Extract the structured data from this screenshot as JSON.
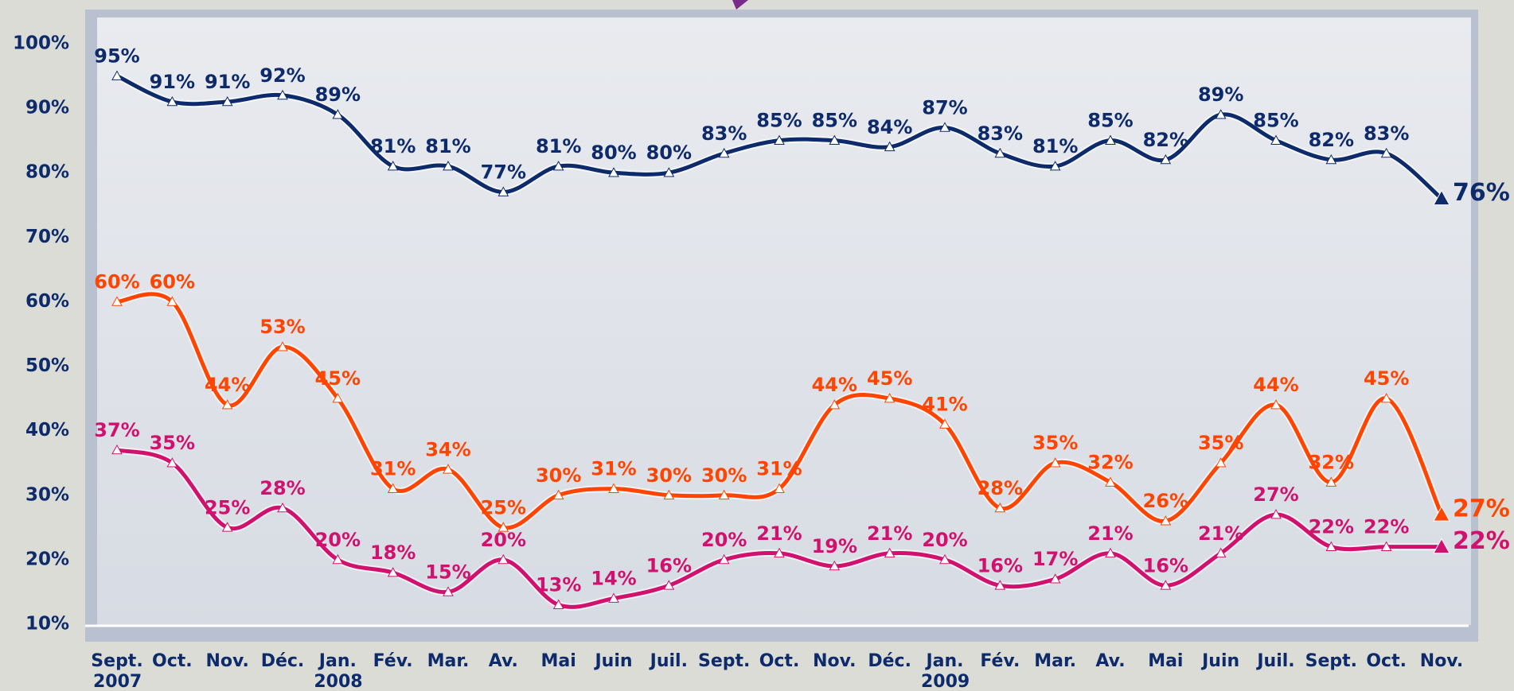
{
  "chart_data": {
    "type": "line",
    "categories": [
      "Sept.",
      "Oct.",
      "Nov.",
      "Déc.",
      "Jan.",
      "Fév.",
      "Mar.",
      "Av.",
      "Mai",
      "Juin",
      "Juil.",
      "Sept.",
      "Oct.",
      "Nov.",
      "Déc.",
      "Jan.",
      "Fév.",
      "Mar.",
      "Av.",
      "Mai",
      "Juin",
      "Juil.",
      "Sept.",
      "Oct.",
      "Nov."
    ],
    "years": [
      "2007",
      null,
      null,
      null,
      "2008",
      null,
      null,
      null,
      null,
      null,
      null,
      null,
      null,
      null,
      null,
      "2009",
      null,
      null,
      null,
      null,
      null,
      null,
      null,
      null,
      null
    ],
    "ylim": [
      10,
      100
    ],
    "yticks": [
      {
        "value": 10,
        "label": "10%"
      },
      {
        "value": 20,
        "label": "20%"
      },
      {
        "value": 30,
        "label": "30%"
      },
      {
        "value": 40,
        "label": "40%"
      },
      {
        "value": 50,
        "label": "50%"
      },
      {
        "value": 60,
        "label": "60%"
      },
      {
        "value": 70,
        "label": "70%"
      },
      {
        "value": 80,
        "label": "80%"
      },
      {
        "value": 90,
        "label": "90%"
      },
      {
        "value": 100,
        "label": "100%"
      }
    ],
    "series": [
      {
        "color": "#0d2a6b",
        "values": [
          95,
          91,
          91,
          92,
          89,
          81,
          81,
          77,
          81,
          80,
          80,
          83,
          85,
          85,
          84,
          87,
          83,
          81,
          85,
          82,
          89,
          85,
          82,
          83,
          76
        ],
        "value_labels": [
          "95%",
          "91%",
          "91%",
          "92%",
          "89%",
          "81%",
          "81%",
          "77%",
          "81%",
          "80%",
          "80%",
          "83%",
          "85%",
          "85%",
          "84%",
          "87%",
          "83%",
          "81%",
          "85%",
          "82%",
          "89%",
          "85%",
          "82%",
          "83%",
          "76%"
        ]
      },
      {
        "color": "#ff4500",
        "values": [
          60,
          60,
          44,
          53,
          45,
          31,
          34,
          25,
          30,
          31,
          30,
          30,
          31,
          44,
          45,
          41,
          28,
          35,
          32,
          26,
          35,
          44,
          32,
          45,
          27
        ],
        "value_labels": [
          "60%",
          "60%",
          "44%",
          "53%",
          "45%",
          "31%",
          "34%",
          "25%",
          "30%",
          "31%",
          "30%",
          "30%",
          "31%",
          "44%",
          "45%",
          "41%",
          "28%",
          "35%",
          "32%",
          "26%",
          "35%",
          "44%",
          "32%",
          "45%",
          "27%"
        ]
      },
      {
        "color": "#d0126e",
        "values": [
          37,
          35,
          25,
          28,
          20,
          18,
          15,
          20,
          13,
          14,
          16,
          20,
          21,
          19,
          21,
          20,
          16,
          17,
          21,
          16,
          21,
          27,
          22,
          22,
          22
        ],
        "value_labels": [
          "37%",
          "35%",
          "25%",
          "28%",
          "20%",
          "18%",
          "15%",
          "20%",
          "13%",
          "14%",
          "16%",
          "20%",
          "21%",
          "19%",
          "21%",
          "20%",
          "16%",
          "17%",
          "21%",
          "16%",
          "21%",
          "27%",
          "22%",
          "22%",
          "22%"
        ]
      }
    ]
  }
}
